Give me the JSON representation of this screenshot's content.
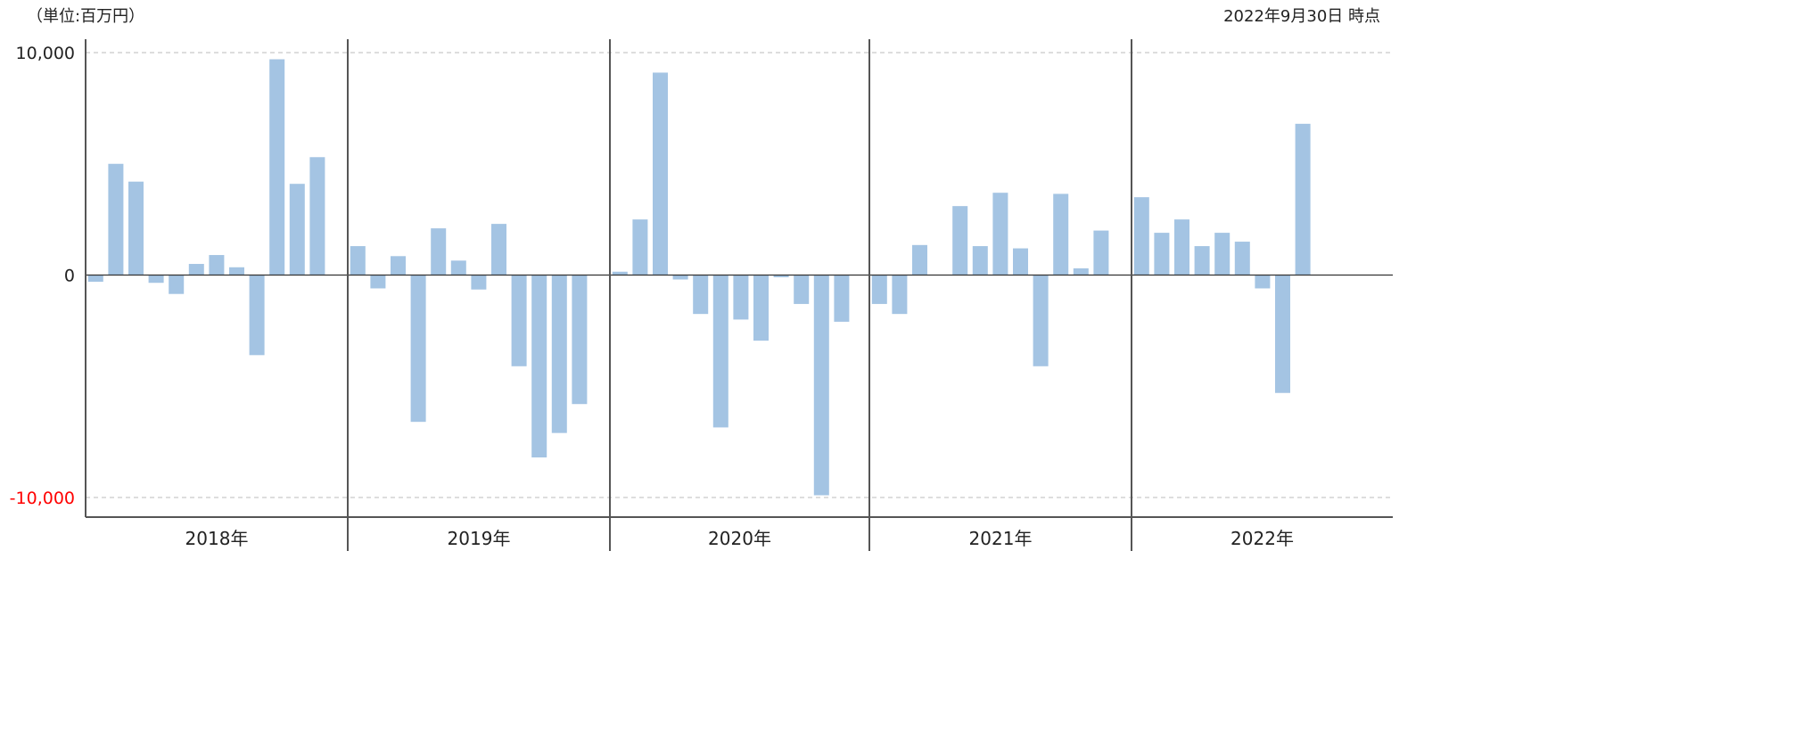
{
  "header": {
    "unit": "（単位:百万円）",
    "as_of": "2022年9月30日 時点"
  },
  "colors": {
    "bar": "#a4c4e3",
    "negative_tick": "#ff0000",
    "axis": "#555555",
    "zero_line": "#333333",
    "grid": "#bbbbbb"
  },
  "chart_data": {
    "type": "bar",
    "ylim": [
      -10000,
      10000
    ],
    "grid": true,
    "y_ticks": [
      {
        "value": 10000,
        "label": "10,000"
      },
      {
        "value": 0,
        "label": "0"
      },
      {
        "value": -10000,
        "label": "-10,000"
      }
    ],
    "groups": [
      {
        "label": "2018年",
        "values": [
          -300,
          5000,
          4200,
          -350,
          -850,
          500,
          900,
          350,
          -3600,
          9700,
          4100,
          5300
        ]
      },
      {
        "label": "2019年",
        "values": [
          1300,
          -600,
          850,
          -6600,
          2100,
          650,
          -650,
          2300,
          -4100,
          -8200,
          -7100,
          -5800
        ]
      },
      {
        "label": "2020年",
        "values": [
          150,
          2500,
          9100,
          -200,
          -1750,
          -6850,
          -2000,
          -2950,
          -100,
          -1300,
          -9900,
          -2100
        ]
      },
      {
        "label": "2021年",
        "values": [
          -1300,
          -1750,
          1350,
          0,
          3100,
          1300,
          3700,
          1200,
          -4100,
          3650,
          300,
          2000
        ]
      },
      {
        "label": "2022年",
        "values": [
          3500,
          1900,
          2500,
          1300,
          1900,
          1500,
          -600,
          -5300,
          6800
        ]
      }
    ]
  }
}
